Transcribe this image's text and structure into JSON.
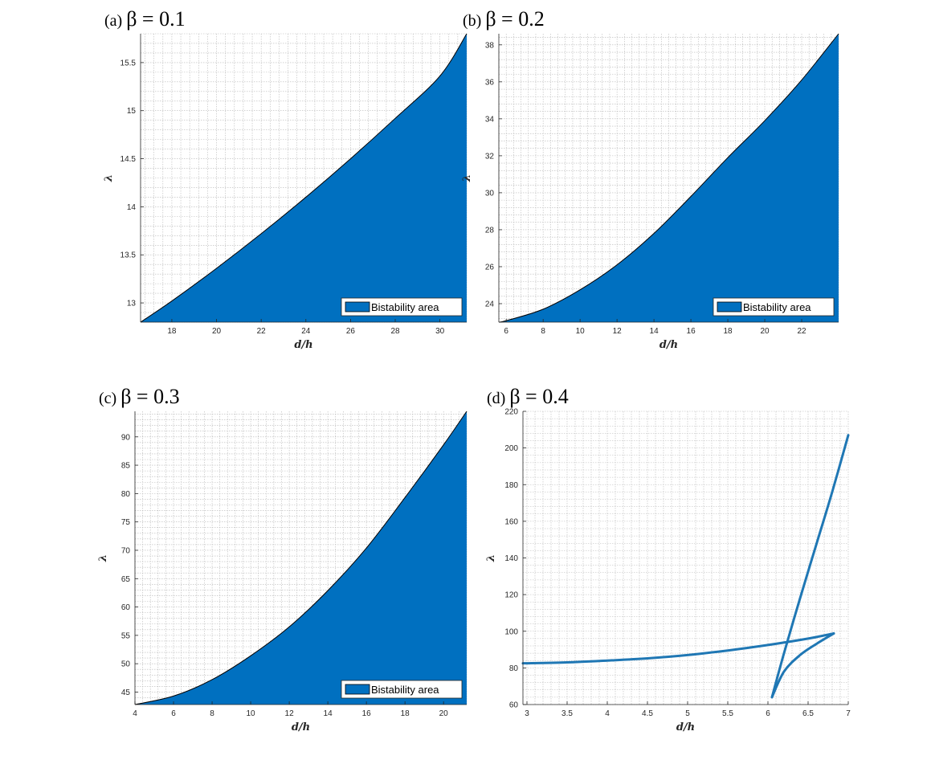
{
  "colors": {
    "fill": "#0070c0",
    "curve": "#1f77b4",
    "grid": "#b8b8b8",
    "axis": "#262626"
  },
  "chart_data": [
    {
      "type": "area",
      "panel_letter": "(a)",
      "title_math": "β = 0.1",
      "xlabel": "d/h",
      "ylabel": "λ",
      "xlim": [
        16.6,
        31.2
      ],
      "ylim": [
        12.8,
        15.8
      ],
      "xticks": [
        18,
        20,
        22,
        24,
        26,
        28,
        30
      ],
      "yticks": [
        13,
        13.5,
        14,
        14.5,
        15,
        15.5
      ],
      "legend": "Bistability area",
      "legend_location": "bottom-right",
      "grid": true,
      "x": [
        16.6,
        18,
        20,
        22,
        24,
        26,
        28,
        30,
        31.2
      ],
      "y": [
        12.8,
        13.02,
        13.36,
        13.72,
        14.1,
        14.5,
        14.92,
        15.36,
        15.8
      ]
    },
    {
      "type": "area",
      "panel_letter": "(b)",
      "title_math": "β = 0.2",
      "xlabel": "d/h",
      "ylabel": "λ",
      "xlim": [
        5.6,
        24.0
      ],
      "ylim": [
        23.0,
        38.6
      ],
      "xticks": [
        6,
        8,
        10,
        12,
        14,
        16,
        18,
        20,
        22
      ],
      "yticks": [
        24,
        26,
        28,
        30,
        32,
        34,
        36,
        38
      ],
      "legend": "Bistability area",
      "legend_location": "bottom-right",
      "grid": true,
      "x": [
        5.6,
        6,
        8,
        10,
        12,
        14,
        16,
        18,
        20,
        22,
        24.0
      ],
      "y": [
        23.0,
        23.08,
        23.7,
        24.75,
        26.1,
        27.8,
        29.8,
        31.9,
        33.9,
        36.1,
        38.6
      ]
    },
    {
      "type": "area",
      "panel_letter": "(c)",
      "title_math": "β = 0.3",
      "xlabel": "d/h",
      "ylabel": "λ",
      "xlim": [
        4.0,
        21.2
      ],
      "ylim": [
        42.8,
        94.5
      ],
      "xticks": [
        4,
        6,
        8,
        10,
        12,
        14,
        16,
        18,
        20
      ],
      "yticks": [
        45,
        50,
        55,
        60,
        65,
        70,
        75,
        80,
        85,
        90
      ],
      "legend": "Bistability area",
      "legend_location": "bottom-right",
      "grid": true,
      "x": [
        4.0,
        6,
        8,
        10,
        12,
        14,
        16,
        18,
        20,
        21.2
      ],
      "y": [
        42.8,
        44.3,
        47.2,
        51.4,
        56.5,
        62.9,
        70.4,
        79.3,
        88.6,
        94.5
      ]
    },
    {
      "type": "line",
      "panel_letter": "(d)",
      "title_math": "β = 0.4",
      "xlabel": "d/h",
      "ylabel": "λ",
      "xlim": [
        2.95,
        7.0
      ],
      "ylim": [
        60,
        220
      ],
      "xticks": [
        3,
        3.5,
        4,
        4.5,
        5,
        5.5,
        6,
        6.5,
        7
      ],
      "yticks": [
        60,
        80,
        100,
        120,
        140,
        160,
        180,
        200,
        220
      ],
      "grid": true,
      "series": [
        {
          "x": [
            2.95,
            3.5,
            4.0,
            4.5,
            5.0,
            5.5,
            6.0,
            6.5,
            6.82
          ],
          "y": [
            82.5,
            83.0,
            84.0,
            85.2,
            87.0,
            89.5,
            92.5,
            96.0,
            98.8
          ]
        },
        {
          "x": [
            6.05,
            6.2,
            6.4,
            6.6,
            6.82
          ],
          "y": [
            64,
            78,
            87,
            93,
            98.8
          ]
        },
        {
          "x": [
            6.05,
            6.2,
            6.4,
            6.6,
            6.8,
            7.0
          ],
          "y": [
            64,
            88,
            118,
            147,
            176,
            207
          ]
        }
      ]
    }
  ]
}
